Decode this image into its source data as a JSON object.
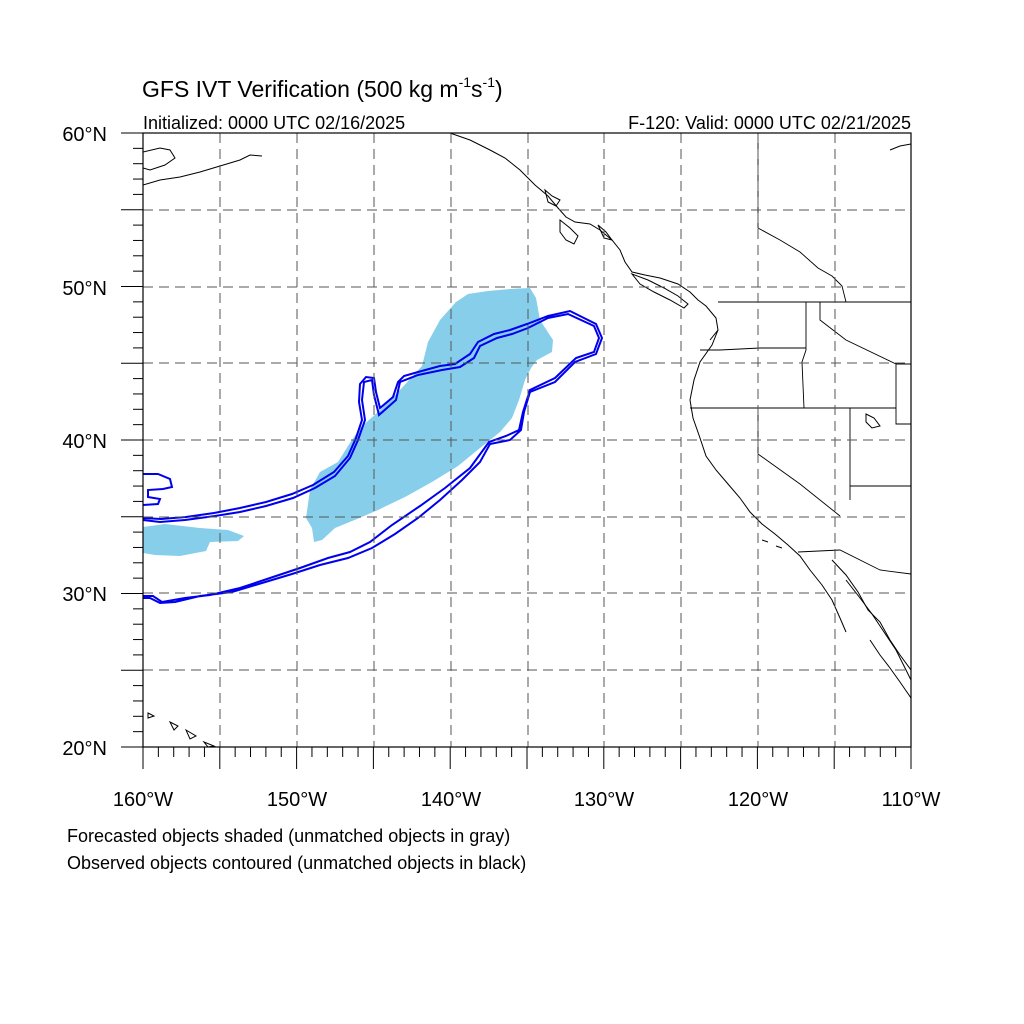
{
  "title": {
    "main": "GFS IVT Verification (500 kg m",
    "exp1": "-1",
    "mid": "s",
    "exp2": "-1",
    "close": ")"
  },
  "subtitle_left": "Initialized: 0000 UTC 02/16/2025",
  "subtitle_right": "F-120: Valid: 0000 UTC 02/21/2025",
  "lat_labels": [
    "60°N",
    "50°N",
    "40°N",
    "30°N",
    "20°N"
  ],
  "lon_labels": [
    "160°W",
    "150°W",
    "140°W",
    "130°W",
    "120°W",
    "110°W"
  ],
  "footer": [
    "Forecasted objects shaded (unmatched objects in gray)",
    "Observed objects contoured (unmatched objects in black)"
  ],
  "map": {
    "lat_range": [
      20,
      60
    ],
    "lon_range": [
      -160,
      -110
    ],
    "grid_spacing_deg": 5,
    "grid": "dashed"
  },
  "colors": {
    "forecast_fill": "#87ceeb",
    "observed_contour": "#0000ee",
    "coastline": "#000000",
    "grid": "#555555"
  }
}
